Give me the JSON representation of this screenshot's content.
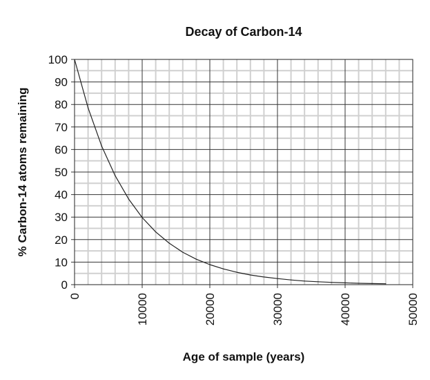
{
  "chart_data": {
    "type": "line",
    "title": "Decay of Carbon-14",
    "xlabel": "Age of sample (years)",
    "ylabel": "% Carbon-14 atoms remaining",
    "xlim": [
      0,
      50000
    ],
    "ylim": [
      0,
      100
    ],
    "x_ticks": [
      "0",
      "10000",
      "20000",
      "30000",
      "40000",
      "50000"
    ],
    "y_ticks": [
      "0",
      "10",
      "20",
      "30",
      "40",
      "50",
      "60",
      "70",
      "80",
      "90",
      "100"
    ],
    "grid": true,
    "minor_grid": true,
    "line_color": "#222222",
    "series": [
      {
        "x": [
          0,
          2000,
          4000,
          6000,
          8000,
          10000,
          12000,
          14000,
          16000,
          18000,
          20000,
          22000,
          24000,
          26000,
          28000,
          30000,
          32000,
          34000,
          36000,
          38000,
          40000,
          42000,
          44000,
          46000
        ],
        "y": [
          100,
          78.5,
          61.6,
          48.4,
          38.0,
          29.8,
          23.4,
          18.4,
          14.4,
          11.3,
          8.9,
          7.0,
          5.5,
          4.3,
          3.4,
          2.7,
          2.1,
          1.6,
          1.3,
          1.0,
          0.8,
          0.6,
          0.5,
          0.4
        ]
      }
    ]
  }
}
